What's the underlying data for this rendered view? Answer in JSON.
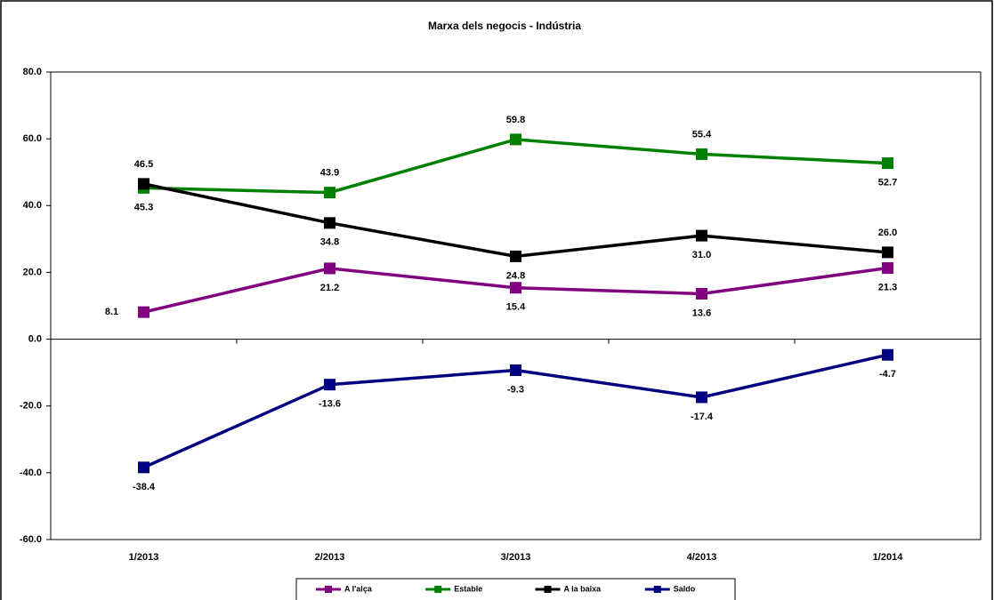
{
  "chart_data": {
    "type": "line",
    "title": "Marxa dels negocis - Indústria",
    "categories": [
      "1/2013",
      "2/2013",
      "3/2013",
      "4/2013",
      "1/2014"
    ],
    "series": [
      {
        "name": "A l'alça",
        "color": "#800080",
        "values": [
          8.1,
          21.2,
          15.4,
          13.6,
          21.3
        ],
        "value_labels": [
          "8.1",
          "21.2",
          "15.4",
          "13.6",
          "21.3"
        ]
      },
      {
        "name": "Estable",
        "color": "#008000",
        "values": [
          45.3,
          43.9,
          59.8,
          55.4,
          52.7
        ],
        "value_labels": [
          "45.3",
          "43.9",
          "59.8",
          "55.4",
          "52.7"
        ]
      },
      {
        "name": "A la baixa",
        "color": "#000000",
        "values": [
          46.5,
          34.8,
          24.8,
          31.0,
          26.0
        ],
        "value_labels": [
          "46.5",
          "34.8",
          "24.8",
          "31.0",
          "26.0"
        ]
      },
      {
        "name": "Saldo",
        "color": "#000080",
        "values": [
          -38.4,
          -13.6,
          -9.3,
          -17.4,
          -4.7
        ],
        "value_labels": [
          "-38.4",
          "-13.6",
          "-9.3",
          "-17.4",
          "-4.7"
        ]
      }
    ],
    "ylim": [
      -60,
      80
    ],
    "yticks": [
      {
        "value": -60,
        "label": "-60.0"
      },
      {
        "value": -40,
        "label": "-40.0"
      },
      {
        "value": -20,
        "label": "-20.0"
      },
      {
        "value": 0,
        "label": "0.0"
      },
      {
        "value": 20,
        "label": "20.0"
      },
      {
        "value": 40,
        "label": "40.0"
      },
      {
        "value": 60,
        "label": "60.0"
      },
      {
        "value": 80,
        "label": "80.0"
      }
    ],
    "grid": false,
    "legend": "bottom"
  }
}
